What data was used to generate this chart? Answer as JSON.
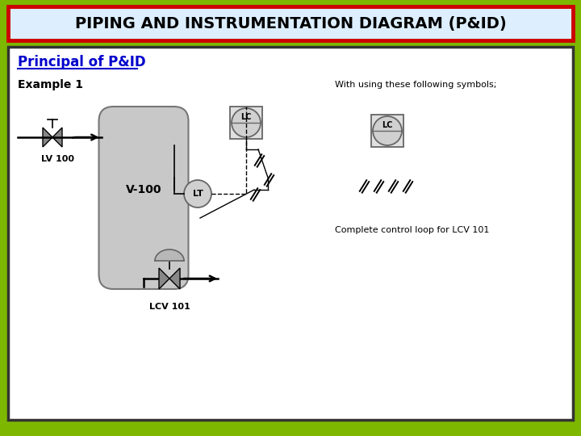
{
  "title": "PIPING AND INSTRUMENTATION DIAGRAM (P&ID)",
  "subtitle": "Principal of P&ID",
  "example_label": "Example 1",
  "right_text": "With using these following symbols;",
  "complete_text": "Complete control loop for LCV 101",
  "lv100_label": "LV 100",
  "v100_label": "V-100",
  "lt_label": "LT",
  "lc_label": "LC",
  "lcv101_label": "LCV 101",
  "bg_outer": "#7db700",
  "header_bg": "#ddeeff",
  "header_border": "#cc0000",
  "content_bg": "#ffffff",
  "vessel_color": "#c8c8c8",
  "instrument_fill": "#d0d0d0",
  "instr_edge": "#666666",
  "line_color": "#000000",
  "title_color": "#000000",
  "subtitle_color": "#0000cc"
}
